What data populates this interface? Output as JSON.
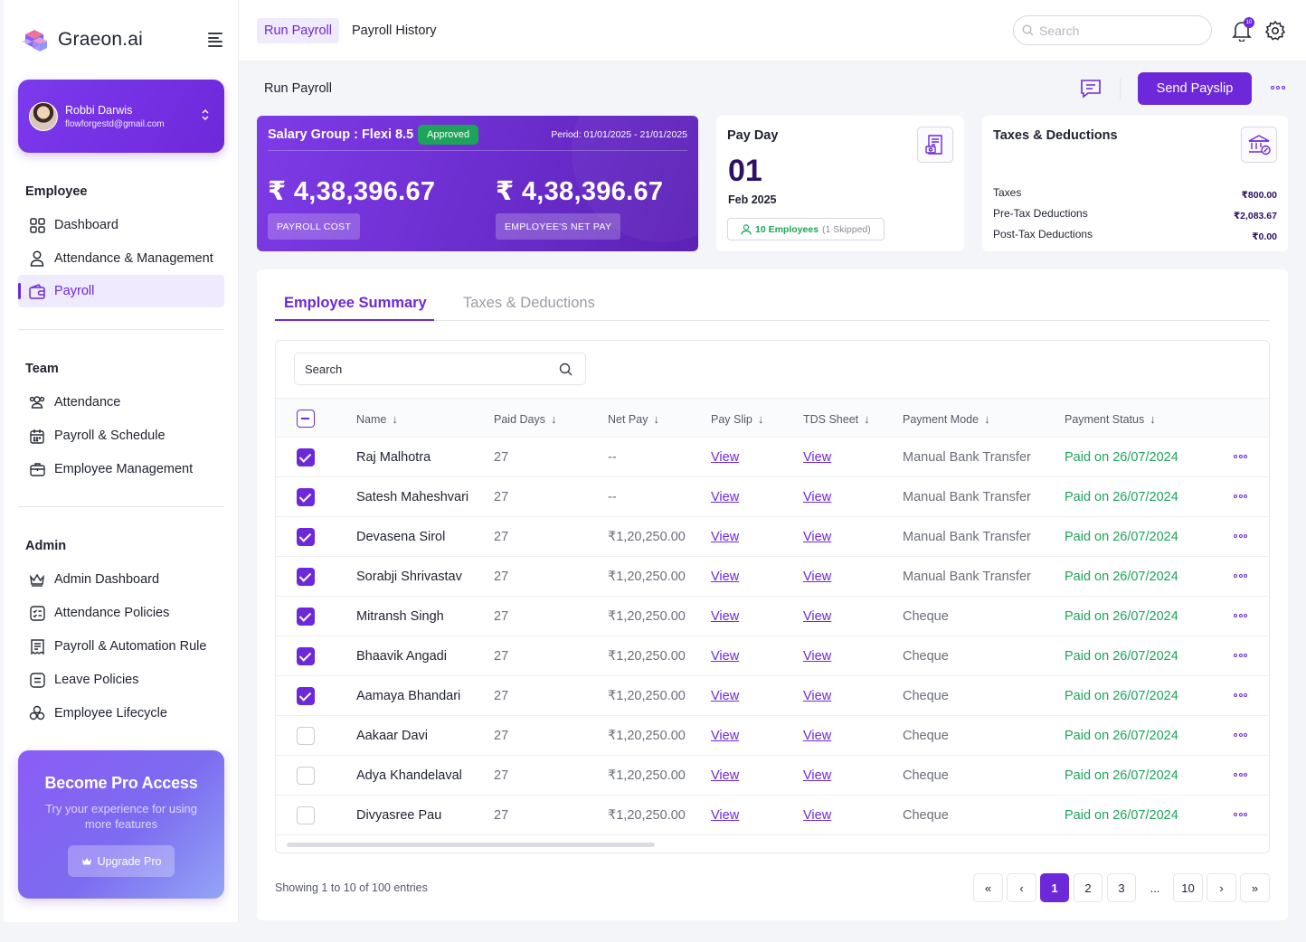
{
  "brand": {
    "name": "Graeon.ai"
  },
  "user": {
    "name": "Robbi Darwis",
    "email": "flowforgestd@gmail.com"
  },
  "sidebar": {
    "sections": [
      {
        "title": "Employee",
        "items": [
          {
            "label": "Dashboard",
            "icon": "grid-icon"
          },
          {
            "label": "Attendance & Management",
            "icon": "user-icon"
          },
          {
            "label": "Payroll",
            "icon": "wallet-icon",
            "active": true
          }
        ]
      },
      {
        "title": "Team",
        "items": [
          {
            "label": "Attendance",
            "icon": "users-icon"
          },
          {
            "label": "Payroll & Schedule",
            "icon": "calendar-icon"
          },
          {
            "label": "Employee Management",
            "icon": "briefcase-icon"
          }
        ]
      },
      {
        "title": "Admin",
        "items": [
          {
            "label": "Admin Dashboard",
            "icon": "crown-icon"
          },
          {
            "label": "Attendance Policies",
            "icon": "policy-icon"
          },
          {
            "label": "Payroll & Automation Rule",
            "icon": "receipt-icon"
          },
          {
            "label": "Leave Policies",
            "icon": "list-icon"
          },
          {
            "label": "Employee Lifecycle",
            "icon": "lifecycle-icon"
          }
        ]
      }
    ]
  },
  "promo": {
    "title": "Become Pro Access",
    "subtitle": "Try your experience for using more features",
    "button": "Upgrade Pro"
  },
  "topbar": {
    "tabs": [
      {
        "label": "Run Payroll",
        "active": true
      },
      {
        "label": "Payroll History",
        "active": false
      }
    ],
    "search_placeholder": "Search",
    "notification_count": "10"
  },
  "header": {
    "title": "Run Payroll",
    "send_button": "Send Payslip"
  },
  "salary_card": {
    "group": "Salary Group : Flexi 8.5",
    "status": "Approved",
    "period": "Period: 01/01/2025 - 21/01/2025",
    "payroll_cost": "₹ 4,38,396.67",
    "payroll_cost_label": "PAYROLL COST",
    "net_pay": "₹ 4,38,396.67",
    "net_pay_label": "EMPLOYEE'S NET PAY"
  },
  "pay_day": {
    "title": "Pay Day",
    "day": "01",
    "month": "Feb 2025",
    "employees": "10 Employees",
    "skipped": "(1 Skipped)"
  },
  "taxes": {
    "title": "Taxes & Deductions",
    "rows": [
      {
        "label": "Taxes",
        "value": "₹800.00"
      },
      {
        "label": "Pre-Tax Deductions",
        "value": "₹2,083.67"
      },
      {
        "label": "Post-Tax Deductions",
        "value": "₹0.00"
      }
    ]
  },
  "main": {
    "tabs": [
      {
        "label": "Employee Summary",
        "active": true
      },
      {
        "label": "Taxes & Deductions",
        "active": false
      }
    ],
    "search_placeholder": "Search",
    "columns": [
      "Name",
      "Paid Days",
      "Net Pay",
      "Pay Slip",
      "TDS Sheet",
      "Payment Mode",
      "Payment Status"
    ],
    "rows": [
      {
        "checked": true,
        "name": "Raj Malhotra",
        "paid_days": "27",
        "net_pay": "--",
        "pay_slip": "View",
        "tds": "View",
        "mode": "Manual Bank Transfer",
        "status": "Paid on 26/07/2024"
      },
      {
        "checked": true,
        "name": "Satesh Maheshvari",
        "paid_days": "27",
        "net_pay": "--",
        "pay_slip": "View",
        "tds": "View",
        "mode": "Manual Bank Transfer",
        "status": "Paid on 26/07/2024"
      },
      {
        "checked": true,
        "name": "Devasena Sirol",
        "paid_days": "27",
        "net_pay": "₹1,20,250.00",
        "pay_slip": "View",
        "tds": "View",
        "mode": "Manual Bank Transfer",
        "status": "Paid on 26/07/2024"
      },
      {
        "checked": true,
        "name": "Sorabji Shrivastav",
        "paid_days": "27",
        "net_pay": "₹1,20,250.00",
        "pay_slip": "View",
        "tds": "View",
        "mode": "Manual Bank Transfer",
        "status": "Paid on 26/07/2024"
      },
      {
        "checked": true,
        "name": "Mitransh Singh",
        "paid_days": "27",
        "net_pay": "₹1,20,250.00",
        "pay_slip": "View",
        "tds": "View",
        "mode": "Cheque",
        "status": "Paid on 26/07/2024"
      },
      {
        "checked": true,
        "name": "Bhaavik Angadi",
        "paid_days": "27",
        "net_pay": "₹1,20,250.00",
        "pay_slip": "View",
        "tds": "View",
        "mode": "Cheque",
        "status": "Paid on 26/07/2024"
      },
      {
        "checked": true,
        "name": "Aamaya Bhandari",
        "paid_days": "27",
        "net_pay": "₹1,20,250.00",
        "pay_slip": "View",
        "tds": "View",
        "mode": "Cheque",
        "status": "Paid on 26/07/2024"
      },
      {
        "checked": false,
        "name": "Aakaar Davi",
        "paid_days": "27",
        "net_pay": "₹1,20,250.00",
        "pay_slip": "View",
        "tds": "View",
        "mode": "Cheque",
        "status": "Paid on 26/07/2024"
      },
      {
        "checked": false,
        "name": "Adya Khandelaval",
        "paid_days": "27",
        "net_pay": "₹1,20,250.00",
        "pay_slip": "View",
        "tds": "View",
        "mode": "Cheque",
        "status": "Paid on 26/07/2024"
      },
      {
        "checked": false,
        "name": "Divyasree Pau",
        "paid_days": "27",
        "net_pay": "₹1,20,250.00",
        "pay_slip": "View",
        "tds": "View",
        "mode": "Cheque",
        "status": "Paid on 26/07/2024"
      }
    ],
    "entries_text": "Showing 1 to 10 of 100 entries",
    "pagination": {
      "first": "«",
      "prev": "‹",
      "pages": [
        "1",
        "2",
        "3"
      ],
      "ellipsis": "...",
      "last_page": "10",
      "next": "›",
      "last": "»",
      "current": "1"
    }
  },
  "colors": {
    "accent": "#6d28d9",
    "success": "#1ea35a"
  }
}
